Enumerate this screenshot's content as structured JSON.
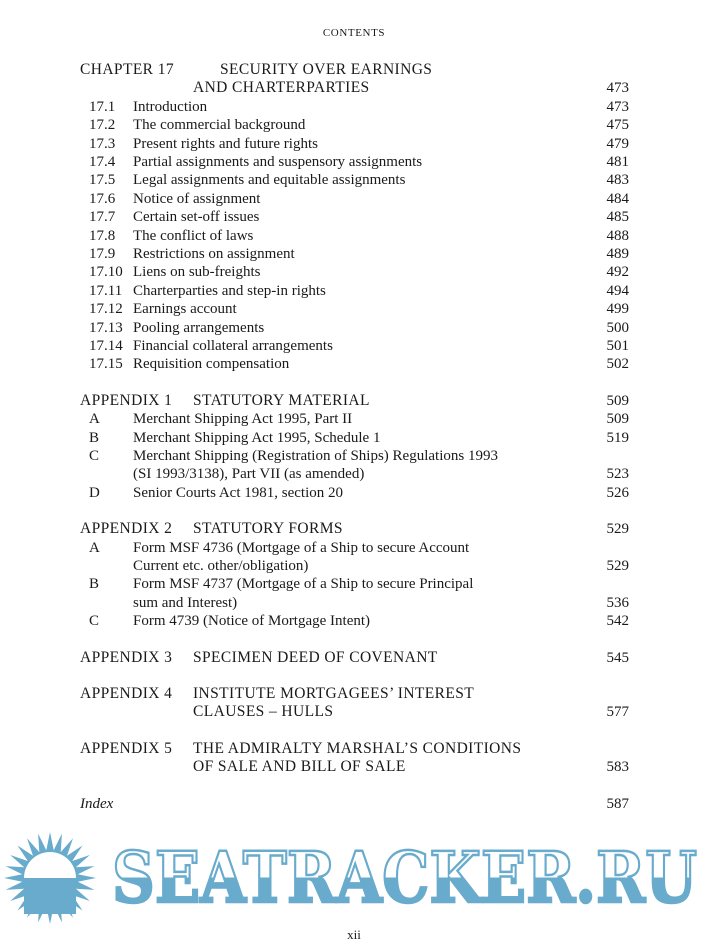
{
  "running_head": "CONTENTS",
  "sections": [
    {
      "label": "CHAPTER 17",
      "title_lines": [
        "SECURITY OVER EARNINGS",
        "AND CHARTERPARTIES"
      ],
      "page": "473",
      "items": [
        {
          "num": "17.1",
          "title_lines": [
            "Introduction"
          ],
          "page": "473"
        },
        {
          "num": "17.2",
          "title_lines": [
            "The commercial background"
          ],
          "page": "475"
        },
        {
          "num": "17.3",
          "title_lines": [
            "Present rights and future rights"
          ],
          "page": "479"
        },
        {
          "num": "17.4",
          "title_lines": [
            "Partial assignments and suspensory assignments"
          ],
          "page": "481"
        },
        {
          "num": "17.5",
          "title_lines": [
            "Legal assignments and equitable assignments"
          ],
          "page": "483"
        },
        {
          "num": "17.6",
          "title_lines": [
            "Notice of assignment"
          ],
          "page": "484"
        },
        {
          "num": "17.7",
          "title_lines": [
            "Certain set-off issues"
          ],
          "page": "485"
        },
        {
          "num": "17.8",
          "title_lines": [
            "The conflict of laws"
          ],
          "page": "488"
        },
        {
          "num": "17.9",
          "title_lines": [
            "Restrictions on assignment"
          ],
          "page": "489"
        },
        {
          "num": "17.10",
          "title_lines": [
            "Liens on sub-freights"
          ],
          "page": "492"
        },
        {
          "num": "17.11",
          "title_lines": [
            "Charterparties and step-in rights"
          ],
          "page": "494"
        },
        {
          "num": "17.12",
          "title_lines": [
            "Earnings account"
          ],
          "page": "499"
        },
        {
          "num": "17.13",
          "title_lines": [
            "Pooling arrangements"
          ],
          "page": "500"
        },
        {
          "num": "17.14",
          "title_lines": [
            "Financial collateral arrangements"
          ],
          "page": "501"
        },
        {
          "num": "17.15",
          "title_lines": [
            "Requisition compensation"
          ],
          "page": "502"
        }
      ]
    },
    {
      "label": "APPENDIX 1",
      "title_lines": [
        "STATUTORY MATERIAL"
      ],
      "page": "509",
      "items": [
        {
          "num": "A",
          "title_lines": [
            "Merchant Shipping Act 1995, Part II"
          ],
          "page": "509"
        },
        {
          "num": "B",
          "title_lines": [
            "Merchant Shipping Act 1995, Schedule 1"
          ],
          "page": "519"
        },
        {
          "num": "C",
          "title_lines": [
            "Merchant Shipping (Registration of Ships) Regulations 1993",
            "(SI 1993/3138), Part VII (as amended)"
          ],
          "page": "523"
        },
        {
          "num": "D",
          "title_lines": [
            "Senior Courts Act 1981, section 20"
          ],
          "page": "526"
        }
      ]
    },
    {
      "label": "APPENDIX 2",
      "title_lines": [
        "STATUTORY FORMS"
      ],
      "page": "529",
      "items": [
        {
          "num": "A",
          "title_lines": [
            "Form MSF 4736 (Mortgage of a Ship to secure Account",
            "Current etc. other/obligation)"
          ],
          "page": "529"
        },
        {
          "num": "B",
          "title_lines": [
            "Form MSF 4737 (Mortgage of a Ship to secure Principal",
            "sum and Interest)"
          ],
          "page": "536"
        },
        {
          "num": "C",
          "title_lines": [
            "Form 4739 (Notice of Mortgage Intent)"
          ],
          "page": "542"
        }
      ]
    },
    {
      "label": "APPENDIX 3",
      "title_lines": [
        "SPECIMEN DEED OF COVENANT"
      ],
      "page": "545",
      "items": []
    },
    {
      "label": "APPENDIX 4",
      "title_lines": [
        "INSTITUTE MORTGAGEES’ INTEREST",
        "CLAUSES – HULLS"
      ],
      "page": "577",
      "items": []
    },
    {
      "label": "APPENDIX 5",
      "title_lines": [
        "THE ADMIRALTY MARSHAL’S CONDITIONS",
        "OF SALE AND BILL OF SALE"
      ],
      "page": "583",
      "items": []
    }
  ],
  "index": {
    "label": "Index",
    "page": "587"
  },
  "folio": "xii",
  "watermark": {
    "text": "SEATRACKER.RU",
    "color": "#69abcc"
  }
}
